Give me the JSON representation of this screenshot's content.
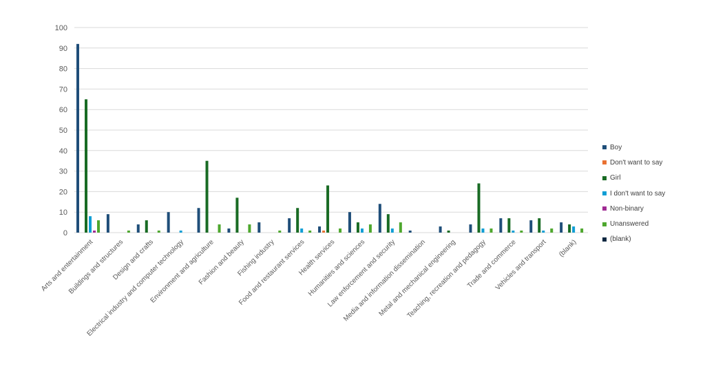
{
  "chart_data": {
    "type": "bar",
    "title": "",
    "xlabel": "",
    "ylabel": "",
    "ylim": [
      0,
      100
    ],
    "yticks": [
      0,
      10,
      20,
      30,
      40,
      50,
      60,
      70,
      80,
      90,
      100
    ],
    "grid": true,
    "legend_position": "right",
    "categories": [
      "Arts and entertainment",
      "Buildings and structures",
      "Design and crafts",
      "Electrical industry and computer technology",
      "Environment and agriculture",
      "Fashion and beauty",
      "Fishing industry",
      "Food and restaurant services",
      "Health services",
      "Humanities and sciences",
      "Law enforcement and security",
      "Media and information dissemination",
      "Metal and mechanical engineering",
      "Teaching, recreation and pedagogy",
      "Trade and commerce",
      "Vehicles and transport",
      "(blank)"
    ],
    "series": [
      {
        "name": "Boy",
        "color": "#1f4e79",
        "values": [
          92,
          9,
          4,
          10,
          12,
          2,
          5,
          7,
          3,
          10,
          14,
          1,
          3,
          4,
          7,
          6,
          5
        ]
      },
      {
        "name": "Don't want to say",
        "color": "#e97132",
        "values": [
          0,
          0,
          0,
          0,
          0,
          0,
          0,
          0,
          1,
          0,
          0,
          0,
          0,
          0,
          0,
          0,
          0
        ]
      },
      {
        "name": "Girl",
        "color": "#196b24",
        "values": [
          65,
          0,
          6,
          0,
          35,
          17,
          0,
          12,
          23,
          5,
          9,
          0,
          1,
          24,
          7,
          7,
          4
        ]
      },
      {
        "name": "I don't want to say",
        "color": "#0f9ed5",
        "values": [
          8,
          0,
          0,
          1,
          0,
          0,
          0,
          2,
          0,
          2,
          2,
          0,
          0,
          2,
          1,
          1,
          3
        ]
      },
      {
        "name": "Non-binary",
        "color": "#a02b93",
        "values": [
          1,
          0,
          0,
          0,
          0,
          0,
          0,
          0,
          0,
          0,
          0,
          0,
          0,
          0,
          0,
          0,
          0
        ]
      },
      {
        "name": "Unanswered",
        "color": "#4ea72e",
        "values": [
          6,
          1,
          1,
          0,
          4,
          4,
          1,
          1,
          2,
          4,
          5,
          0,
          0,
          2,
          1,
          2,
          2
        ]
      },
      {
        "name": "(blank)",
        "color": "#0e2841",
        "values": [
          0,
          0,
          0,
          0,
          0,
          0,
          0,
          0,
          0,
          0,
          0,
          0,
          0,
          0,
          0,
          0,
          0
        ]
      }
    ]
  }
}
